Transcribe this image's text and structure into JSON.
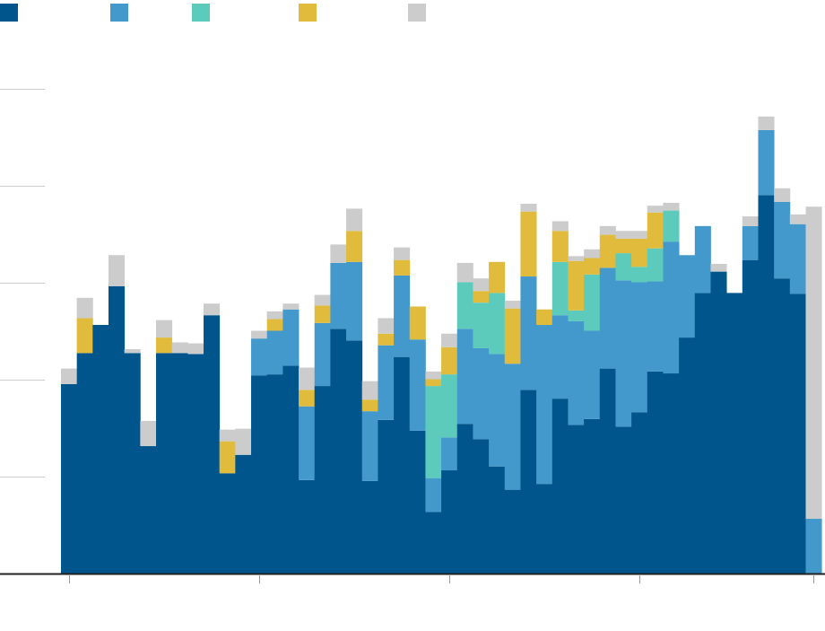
{
  "chart_data": {
    "type": "bar",
    "stacked": true,
    "title": "",
    "xlabel": "",
    "ylabel": "",
    "ylim": [
      0,
      5.6
    ],
    "yticks": [
      1,
      2,
      3,
      4,
      5
    ],
    "xticks": [],
    "grid": true,
    "legend_position": "top-left",
    "colors": [
      "#00568c",
      "#4399cc",
      "#5ccbbc",
      "#e0bb3c",
      "#cccccc"
    ],
    "series": [
      {
        "color": "#00568c",
        "values": [
          1.95,
          2.27,
          2.56,
          2.96,
          2.27,
          1.31,
          2.27,
          2.27,
          2.26,
          2.66,
          1.03,
          1.22,
          2.04,
          2.05,
          2.14,
          0.96,
          1.93,
          2.52,
          2.4,
          0.95,
          1.58,
          2.23,
          1.47,
          0.63,
          1.06,
          1.54,
          1.38,
          1.1,
          0.86,
          1.89,
          0.92,
          1.8,
          1.53,
          1.59,
          2.11,
          1.51,
          1.66,
          2.08,
          2.06,
          2.43,
          2.89,
          3.11,
          2.89,
          3.23,
          3.9,
          3.04,
          2.88,
          0
        ]
      },
      {
        "color": "#4399cc",
        "values": [
          0,
          0,
          0,
          0,
          0,
          0,
          0,
          0,
          0,
          0,
          0,
          0,
          0.38,
          0.45,
          0.58,
          0.76,
          0.65,
          0.68,
          0.81,
          0.72,
          0.77,
          0.84,
          0.94,
          0.35,
          0.34,
          0.98,
          0.94,
          1.16,
          1.3,
          1.17,
          1.64,
          0.86,
          1.07,
          0.91,
          1.04,
          1.51,
          1.34,
          0.93,
          1.36,
          0.85,
          0.69,
          0,
          0,
          0.35,
          0.67,
          0.79,
          0.72,
          0.56
        ]
      },
      {
        "color": "#5ccbbc",
        "values": [
          0,
          0,
          0,
          0,
          0,
          0,
          0,
          0,
          0,
          0,
          0,
          0,
          0,
          0,
          0,
          0,
          0,
          0,
          0,
          0,
          0,
          0,
          0,
          0.95,
          0.65,
          0.48,
          0.47,
          0.63,
          0,
          0,
          0,
          0.55,
          0.11,
          0.58,
          0,
          0.28,
          0.16,
          0.34,
          0.32,
          0,
          0,
          0,
          0,
          0,
          0,
          0,
          0,
          0
        ]
      },
      {
        "color": "#e0bb3c",
        "values": [
          0,
          0.36,
          0,
          0,
          0,
          0,
          0.16,
          0,
          0,
          0,
          0.33,
          0,
          0,
          0.12,
          0,
          0.17,
          0.18,
          0,
          0.32,
          0.12,
          0.12,
          0.16,
          0.34,
          0.07,
          0.28,
          0,
          0.12,
          0.32,
          0.57,
          0.67,
          0.16,
          0.32,
          0.51,
          0.17,
          0.34,
          0.15,
          0.29,
          0.37,
          0,
          0,
          0,
          0,
          0,
          0,
          0,
          0,
          0,
          0
        ]
      },
      {
        "color": "#cccccc",
        "values": [
          0.16,
          0.21,
          0,
          0.32,
          0.04,
          0.26,
          0.18,
          0.11,
          0.11,
          0.12,
          0.12,
          0.27,
          0.08,
          0.08,
          0.06,
          0.23,
          0.11,
          0.19,
          0.23,
          0.19,
          0.16,
          0.13,
          0,
          0.08,
          0.14,
          0.2,
          0.13,
          0,
          0.08,
          0.08,
          0,
          0.1,
          0.05,
          0.09,
          0.09,
          0.08,
          0.08,
          0.07,
          0.08,
          0,
          0,
          0.08,
          0,
          0.1,
          0.14,
          0.14,
          0.1,
          3.22
        ]
      }
    ]
  }
}
